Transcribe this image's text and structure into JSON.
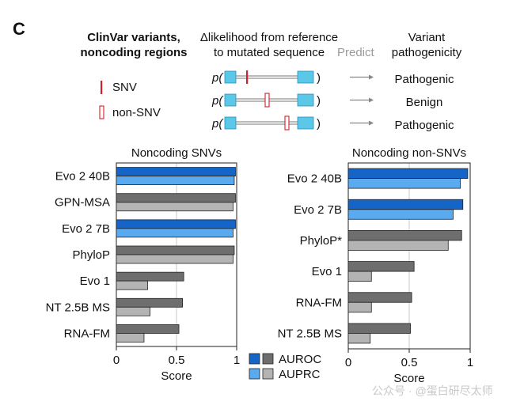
{
  "panel": {
    "label": "C"
  },
  "header": {
    "col1_line1": "ClinVar variants,",
    "col1_line2": "noncoding regions",
    "col2_line1": "Δlikelihood from reference",
    "col2_line2": "to mutated sequence",
    "predict": "Predict",
    "col3_line1": "Variant",
    "col3_line2": "pathogenicity"
  },
  "schematic": {
    "legend": [
      {
        "label": "SNV"
      },
      {
        "label": "non-SNV"
      }
    ],
    "rows": [
      {
        "p_label": "p(",
        "close": ")",
        "outcome": "Pathogenic"
      },
      {
        "p_label": "p(",
        "close": ")",
        "outcome": "Benign"
      },
      {
        "p_label": "p(",
        "close": ")",
        "outcome": "Pathogenic"
      }
    ],
    "colors": {
      "box": "#5bc8e8",
      "mark": "#d0202a",
      "arrow": "#888888"
    }
  },
  "metric_legend": [
    {
      "label": "AUROC",
      "colors": [
        "#1565c8",
        "#6e6e6e"
      ]
    },
    {
      "label": "AUPRC",
      "colors": [
        "#5aaaf0",
        "#b4b4b4"
      ]
    }
  ],
  "watermark": "公众号 · @蛋白研尽太师",
  "chart_data": [
    {
      "type": "bar",
      "orientation": "horizontal",
      "title": "Noncoding SNVs",
      "xlabel": "Score",
      "xlim": [
        0,
        1
      ],
      "xticks": [
        0,
        0.5,
        1
      ],
      "xtick_labels": [
        "0",
        "0.5",
        "1"
      ],
      "grid": "vertical",
      "categories": [
        "Evo 2 40B",
        "GPN-MSA",
        "Evo 2 7B",
        "PhyloP",
        "Evo 1",
        "NT 2.5B MS",
        "RNA-FM"
      ],
      "highlight": [
        "Evo 2 40B",
        "Evo 2 7B"
      ],
      "series": [
        {
          "name": "AUROC",
          "values": [
            0.99,
            0.99,
            0.99,
            0.98,
            0.56,
            0.55,
            0.52
          ]
        },
        {
          "name": "AUPRC",
          "values": [
            0.98,
            0.97,
            0.97,
            0.97,
            0.26,
            0.28,
            0.23
          ]
        }
      ],
      "colors": {
        "highlight": {
          "AUROC": "#1565c8",
          "AUPRC": "#5aaaf0"
        },
        "other": {
          "AUROC": "#6e6e6e",
          "AUPRC": "#b4b4b4"
        }
      }
    },
    {
      "type": "bar",
      "orientation": "horizontal",
      "title": "Noncoding non-SNVs",
      "xlabel": "Score",
      "xlim": [
        0,
        1
      ],
      "xticks": [
        0,
        0.5,
        1
      ],
      "xtick_labels": [
        "0",
        "0.5",
        "1"
      ],
      "grid": "vertical",
      "categories": [
        "Evo 2 40B",
        "Evo 2 7B",
        "PhyloP*",
        "Evo 1",
        "RNA-FM",
        "NT 2.5B MS"
      ],
      "highlight": [
        "Evo 2 40B",
        "Evo 2 7B"
      ],
      "series": [
        {
          "name": "AUROC",
          "values": [
            0.98,
            0.94,
            0.93,
            0.54,
            0.52,
            0.51
          ]
        },
        {
          "name": "AUPRC",
          "values": [
            0.92,
            0.86,
            0.82,
            0.19,
            0.19,
            0.18
          ]
        }
      ],
      "colors": {
        "highlight": {
          "AUROC": "#1565c8",
          "AUPRC": "#5aaaf0"
        },
        "other": {
          "AUROC": "#6e6e6e",
          "AUPRC": "#b4b4b4"
        }
      }
    }
  ]
}
